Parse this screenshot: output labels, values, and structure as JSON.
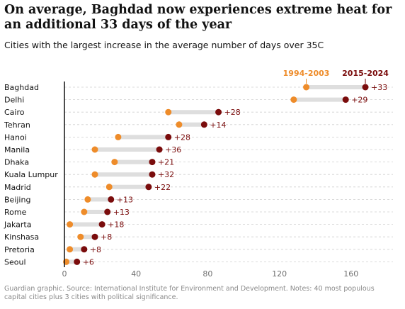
{
  "title": "On average, Baghdad now experiences extreme heat for an additional 33 days of the year",
  "subtitle": "Cities with the largest increase in the average number of days over 35C",
  "footer": "Guardian graphic. Source: International Institute for Environment and Development. Notes: 40 most populous capital cities plus 3 cities with political significance.",
  "colors": {
    "early": "#ee8c2a",
    "late": "#7a0c0c",
    "connector": "#dedede",
    "grid": "#cfcfcf",
    "axis": "#121212",
    "label": "#121212",
    "delta": "#7a0c0c",
    "tick": "#707070"
  },
  "chart_data": {
    "type": "dumbbell",
    "series": [
      {
        "name": "1994-2003",
        "color": "#ee8c2a"
      },
      {
        "name": "2015-2024",
        "color": "#7a0c0c"
      }
    ],
    "xlim": [
      0,
      180
    ],
    "xticks": [
      0,
      40,
      80,
      120,
      160
    ],
    "grid": true,
    "rows": [
      {
        "city": "Baghdad",
        "start": 135,
        "end": 168,
        "delta": "+33"
      },
      {
        "city": "Delhi",
        "start": 128,
        "end": 157,
        "delta": "+29"
      },
      {
        "city": "Cairo",
        "start": 58,
        "end": 86,
        "delta": "+28"
      },
      {
        "city": "Tehran",
        "start": 64,
        "end": 78,
        "delta": "+14"
      },
      {
        "city": "Hanoi",
        "start": 30,
        "end": 58,
        "delta": "+28"
      },
      {
        "city": "Manila",
        "start": 17,
        "end": 53,
        "delta": "+36"
      },
      {
        "city": "Dhaka",
        "start": 28,
        "end": 49,
        "delta": "+21"
      },
      {
        "city": "Kuala Lumpur",
        "start": 17,
        "end": 49,
        "delta": "+32"
      },
      {
        "city": "Madrid",
        "start": 25,
        "end": 47,
        "delta": "+22"
      },
      {
        "city": "Beijing",
        "start": 13,
        "end": 26,
        "delta": "+13"
      },
      {
        "city": "Rome",
        "start": 11,
        "end": 24,
        "delta": "+13"
      },
      {
        "city": "Jakarta",
        "start": 3,
        "end": 21,
        "delta": "+18"
      },
      {
        "city": "Kinshasa",
        "start": 9,
        "end": 17,
        "delta": "+8"
      },
      {
        "city": "Pretoria",
        "start": 3,
        "end": 11,
        "delta": "+8"
      },
      {
        "city": "Seoul",
        "start": 1,
        "end": 7,
        "delta": "+6"
      }
    ]
  }
}
